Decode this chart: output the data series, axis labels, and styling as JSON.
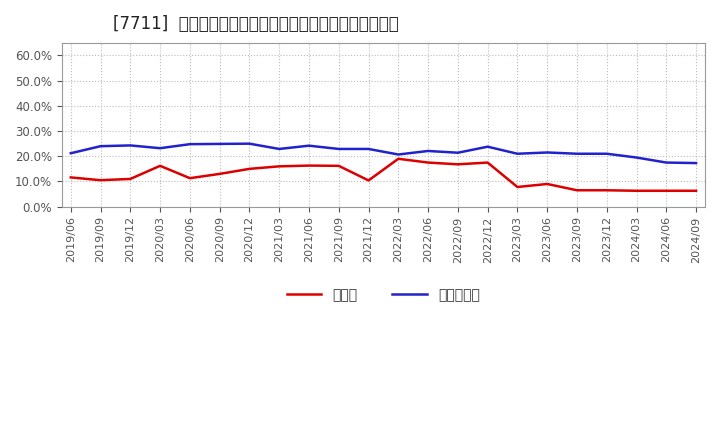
{
  "title": "[7711]  現預金、有利子負債の総資産に対する比率の推移",
  "x_labels": [
    "2019/06",
    "2019/09",
    "2019/12",
    "2020/03",
    "2020/06",
    "2020/09",
    "2020/12",
    "2021/03",
    "2021/06",
    "2021/09",
    "2021/12",
    "2022/03",
    "2022/06",
    "2022/09",
    "2022/12",
    "2023/03",
    "2023/06",
    "2023/09",
    "2023/12",
    "2024/03",
    "2024/06",
    "2024/09"
  ],
  "cash": [
    0.116,
    0.105,
    0.11,
    0.162,
    0.113,
    0.13,
    0.15,
    0.16,
    0.163,
    0.162,
    0.104,
    0.19,
    0.175,
    0.168,
    0.175,
    0.078,
    0.09,
    0.065,
    0.065,
    0.063,
    0.063,
    0.063
  ],
  "debt": [
    0.212,
    0.24,
    0.243,
    0.232,
    0.248,
    0.249,
    0.25,
    0.229,
    0.242,
    0.229,
    0.229,
    0.207,
    0.221,
    0.214,
    0.238,
    0.21,
    0.215,
    0.21,
    0.21,
    0.195,
    0.175,
    0.173
  ],
  "cash_color": "#dd0000",
  "debt_color": "#2222cc",
  "background_color": "#ffffff",
  "grid_color": "#bbbbbb",
  "ylim": [
    0.0,
    0.65
  ],
  "yticks": [
    0.0,
    0.1,
    0.2,
    0.3,
    0.4,
    0.5,
    0.6
  ],
  "legend_cash": "現預金",
  "legend_debt": "有利子負債",
  "title_fontsize": 12,
  "tick_color": "#555555",
  "label_fontsize": 8,
  "spine_color": "#999999"
}
